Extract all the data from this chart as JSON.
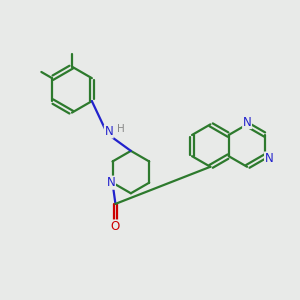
{
  "background_color": "#e8eae8",
  "bond_color": "#2d7a2d",
  "N_color": "#2222cc",
  "O_color": "#cc0000",
  "figsize": [
    3.0,
    3.0
  ],
  "dpi": 100,
  "xlim": [
    0,
    10
  ],
  "ylim": [
    0,
    10
  ]
}
